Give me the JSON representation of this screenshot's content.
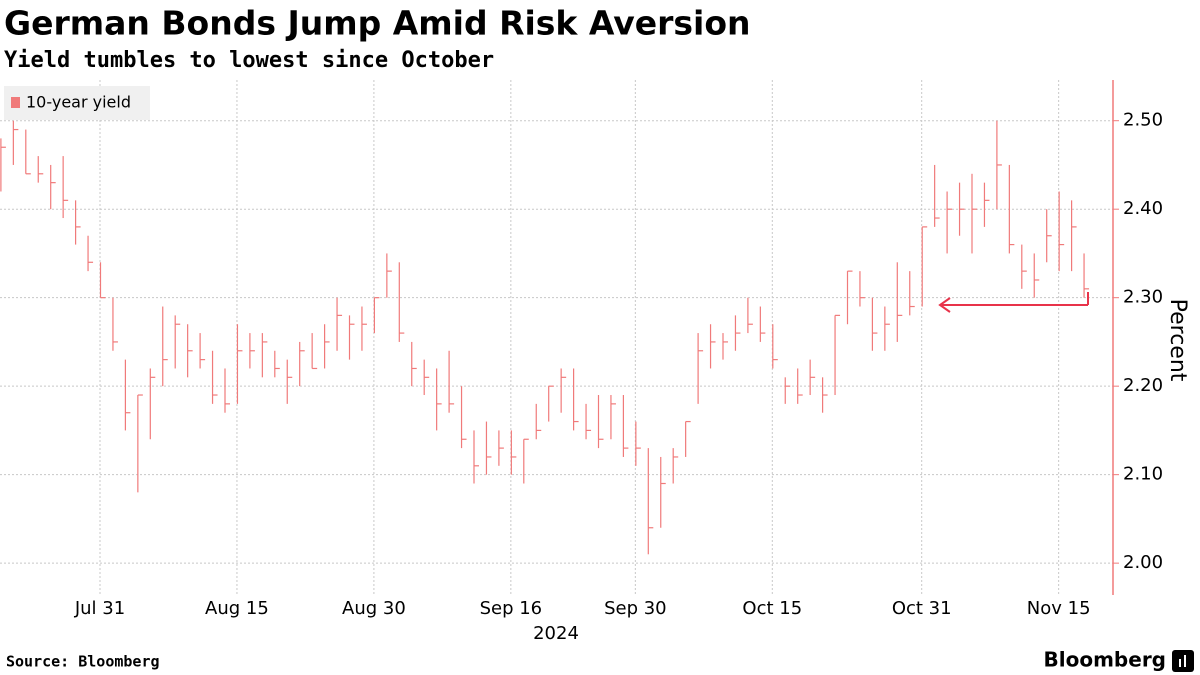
{
  "chart_data": {
    "type": "ohlc",
    "title": "German Bonds Jump Amid Risk Aversion",
    "subtitle": "Yield tumbles to lowest since October",
    "y_label": "Percent",
    "x_label": "2024",
    "source": "Source: Bloomberg",
    "brand": "Bloomberg",
    "legend_position": "upper left",
    "grid": true,
    "categories": [
      null,
      null,
      null,
      null,
      null,
      null,
      null,
      null,
      "Jul 31",
      null,
      null,
      null,
      null,
      null,
      null,
      null,
      null,
      null,
      null,
      "Aug 15",
      null,
      null,
      null,
      null,
      null,
      null,
      null,
      null,
      null,
      null,
      "Aug 30",
      null,
      null,
      null,
      null,
      null,
      null,
      null,
      null,
      null,
      null,
      "Sep 16",
      null,
      null,
      null,
      null,
      null,
      null,
      null,
      null,
      null,
      "Sep 30",
      null,
      null,
      null,
      null,
      null,
      null,
      null,
      null,
      null,
      null,
      "Oct 15",
      null,
      null,
      null,
      null,
      null,
      null,
      null,
      null,
      null,
      null,
      null,
      "Oct 31",
      null,
      null,
      null,
      null,
      null,
      null,
      null,
      null,
      null,
      null,
      "Nov 15",
      null,
      null
    ],
    "series": [
      {
        "name": "10-year yield",
        "color": "#f07a7a",
        "high": [
          2.48,
          2.5,
          2.49,
          2.46,
          2.45,
          2.46,
          2.41,
          2.37,
          2.34,
          2.3,
          2.23,
          2.19,
          2.22,
          2.29,
          2.28,
          2.27,
          2.26,
          2.24,
          2.22,
          2.27,
          2.26,
          2.26,
          2.24,
          2.23,
          2.25,
          2.26,
          2.27,
          2.3,
          2.28,
          2.29,
          2.3,
          2.35,
          2.34,
          2.25,
          2.23,
          2.22,
          2.24,
          2.2,
          2.15,
          2.16,
          2.15,
          2.15,
          2.14,
          2.18,
          2.2,
          2.22,
          2.22,
          2.18,
          2.19,
          2.19,
          2.19,
          2.16,
          2.13,
          2.12,
          2.13,
          2.16,
          2.26,
          2.27,
          2.26,
          2.28,
          2.3,
          2.29,
          2.27,
          2.21,
          2.22,
          2.23,
          2.21,
          2.28,
          2.33,
          2.33,
          2.3,
          2.29,
          2.34,
          2.33,
          2.38,
          2.45,
          2.42,
          2.43,
          2.44,
          2.43,
          2.5,
          2.45,
          2.36,
          2.35,
          2.4,
          2.42,
          2.41,
          2.35
        ],
        "low": [
          2.42,
          2.45,
          2.44,
          2.43,
          2.4,
          2.39,
          2.36,
          2.33,
          2.3,
          2.24,
          2.15,
          2.08,
          2.14,
          2.2,
          2.22,
          2.21,
          2.22,
          2.18,
          2.17,
          2.18,
          2.22,
          2.21,
          2.21,
          2.18,
          2.2,
          2.22,
          2.22,
          2.24,
          2.23,
          2.24,
          2.26,
          2.3,
          2.25,
          2.2,
          2.19,
          2.15,
          2.17,
          2.13,
          2.09,
          2.1,
          2.11,
          2.1,
          2.09,
          2.14,
          2.16,
          2.17,
          2.15,
          2.14,
          2.13,
          2.14,
          2.12,
          2.11,
          2.01,
          2.04,
          2.09,
          2.12,
          2.18,
          2.22,
          2.23,
          2.24,
          2.26,
          2.25,
          2.22,
          2.18,
          2.18,
          2.19,
          2.17,
          2.19,
          2.27,
          2.29,
          2.24,
          2.24,
          2.25,
          2.28,
          2.29,
          2.38,
          2.35,
          2.37,
          2.35,
          2.38,
          2.4,
          2.35,
          2.31,
          2.3,
          2.34,
          2.33,
          2.33,
          2.3
        ],
        "close": [
          2.47,
          2.49,
          2.44,
          2.44,
          2.43,
          2.41,
          2.38,
          2.34,
          2.3,
          2.25,
          2.17,
          2.19,
          2.21,
          2.23,
          2.27,
          2.24,
          2.23,
          2.19,
          2.18,
          2.24,
          2.24,
          2.25,
          2.22,
          2.21,
          2.24,
          2.22,
          2.25,
          2.28,
          2.27,
          2.27,
          2.3,
          2.33,
          2.26,
          2.22,
          2.21,
          2.18,
          2.18,
          2.14,
          2.11,
          2.12,
          2.13,
          2.12,
          2.14,
          2.15,
          2.2,
          2.21,
          2.16,
          2.15,
          2.14,
          2.18,
          2.13,
          2.13,
          2.04,
          2.09,
          2.12,
          2.16,
          2.24,
          2.25,
          2.25,
          2.26,
          2.27,
          2.26,
          2.23,
          2.2,
          2.19,
          2.21,
          2.19,
          2.28,
          2.33,
          2.3,
          2.26,
          2.27,
          2.28,
          2.29,
          2.38,
          2.39,
          2.4,
          2.4,
          2.4,
          2.41,
          2.45,
          2.36,
          2.33,
          2.32,
          2.37,
          2.36,
          2.38,
          2.31
        ]
      }
    ],
    "ylim": [
      1.964,
      2.546
    ],
    "yticks": [
      {
        "value": 2.0,
        "label": "2.00"
      },
      {
        "value": 2.1,
        "label": "2.10"
      },
      {
        "value": 2.2,
        "label": "2.20"
      },
      {
        "value": 2.3,
        "label": "2.30"
      },
      {
        "value": 2.4,
        "label": "2.40"
      },
      {
        "value": 2.5,
        "label": "2.50"
      }
    ]
  }
}
